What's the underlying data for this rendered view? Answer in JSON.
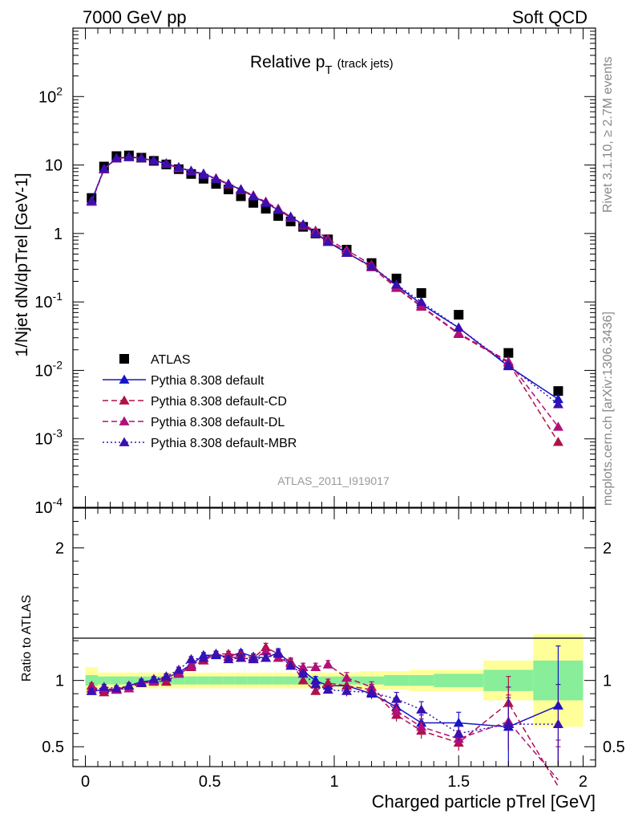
{
  "header": {
    "left": "7000 GeV pp",
    "right": "Soft QCD"
  },
  "side_text": {
    "rivet": "Rivet 3.1.10, ≥ 2.7M events",
    "mcplots": "mcplots.cern.ch [arXiv:1306.3436]"
  },
  "chart_data": {
    "type": "line",
    "title": "Relative pT (track jets)",
    "title_main": "Relative p",
    "title_sub": "T",
    "title_tail": "(track jets)",
    "watermark": "ATLAS_2011_I919017",
    "xlabel": "Charged particle pTrel [GeV]",
    "ylabel": "1/Njet dN/dpTrel [GeV-1]",
    "ratio_ylabel": "Ratio to ATLAS",
    "xlim": [
      -0.05,
      2.05
    ],
    "ylim": [
      0.0001,
      1000
    ],
    "yscale": "log",
    "ratio_ylim": [
      0.35,
      2.3
    ],
    "xticks": [
      "0",
      "0.5",
      "1",
      "1.5",
      "2"
    ],
    "yticks": [
      "10^-4",
      "10^-3",
      "10^-2",
      "10^-1",
      "1",
      "10",
      "10^2"
    ],
    "ratio_yticks": [
      "0.5",
      "1",
      "2"
    ],
    "legend_position": "bottom-left",
    "x": [
      0.025,
      0.075,
      0.125,
      0.175,
      0.225,
      0.275,
      0.325,
      0.375,
      0.425,
      0.475,
      0.525,
      0.575,
      0.625,
      0.675,
      0.725,
      0.775,
      0.825,
      0.875,
      0.925,
      0.975,
      1.05,
      1.15,
      1.25,
      1.35,
      1.5,
      1.7,
      1.9
    ],
    "ratio_band_edges": [
      0.0,
      0.05,
      0.1,
      0.15,
      0.2,
      0.25,
      0.3,
      0.35,
      0.4,
      0.45,
      0.5,
      0.55,
      0.6,
      0.65,
      0.7,
      0.75,
      0.8,
      0.85,
      0.9,
      0.95,
      1.0,
      1.1,
      1.2,
      1.3,
      1.4,
      1.6,
      1.8,
      2.0
    ],
    "ratio_band_inner": [
      0.04,
      0.03,
      0.03,
      0.03,
      0.03,
      0.03,
      0.03,
      0.03,
      0.03,
      0.03,
      0.03,
      0.03,
      0.03,
      0.03,
      0.03,
      0.03,
      0.03,
      0.03,
      0.03,
      0.03,
      0.03,
      0.03,
      0.04,
      0.04,
      0.05,
      0.08,
      0.15,
      0.35
    ],
    "ratio_band_outer": [
      0.1,
      0.06,
      0.06,
      0.06,
      0.06,
      0.06,
      0.06,
      0.06,
      0.06,
      0.06,
      0.06,
      0.06,
      0.06,
      0.06,
      0.06,
      0.06,
      0.06,
      0.06,
      0.06,
      0.06,
      0.06,
      0.07,
      0.07,
      0.08,
      0.08,
      0.15,
      0.35,
      0.58
    ],
    "series": [
      {
        "name": "ATLAS",
        "style": "data",
        "color": "#000000",
        "values": [
          3.3,
          9.5,
          13.5,
          13.8,
          12.8,
          11.5,
          10.2,
          8.7,
          7.4,
          6.3,
          5.3,
          4.4,
          3.5,
          2.8,
          2.3,
          1.8,
          1.5,
          1.25,
          1.0,
          0.82,
          0.58,
          0.37,
          0.22,
          0.135,
          0.065,
          0.018,
          0.005
        ]
      },
      {
        "name": "Pythia 8.308 default",
        "style": "solid",
        "color": "#1515c8",
        "values": [
          3.0,
          8.8,
          12.5,
          13.2,
          12.6,
          11.6,
          10.5,
          9.2,
          8.1,
          7.5,
          6.3,
          5.2,
          4.4,
          3.5,
          2.8,
          2.2,
          1.75,
          1.35,
          1.0,
          0.75,
          0.52,
          0.33,
          0.175,
          0.093,
          0.042,
          0.0115,
          0.0038
        ],
        "ratio": [
          0.92,
          0.93,
          0.93,
          0.96,
          0.99,
          1.0,
          1.02,
          1.06,
          1.12,
          1.19,
          1.19,
          1.18,
          1.21,
          1.18,
          1.17,
          1.21,
          1.13,
          1.07,
          1.0,
          0.96,
          0.96,
          0.9,
          0.8,
          0.68,
          0.68,
          0.65,
          0.81
        ],
        "ratio_err": [
          0.02,
          0.02,
          0.02,
          0.02,
          0.02,
          0.02,
          0.02,
          0.02,
          0.02,
          0.02,
          0.02,
          0.02,
          0.02,
          0.02,
          0.02,
          0.03,
          0.03,
          0.03,
          0.03,
          0.03,
          0.04,
          0.04,
          0.05,
          0.06,
          0.08,
          0.3,
          0.45
        ]
      },
      {
        "name": "Pythia 8.308 default-CD",
        "style": "dashed",
        "color": "#b0104a",
        "values": [
          2.9,
          8.6,
          12.5,
          13.1,
          12.6,
          11.5,
          10.4,
          9.0,
          8.2,
          7.2,
          6.4,
          5.3,
          4.4,
          3.6,
          2.9,
          2.3,
          1.75,
          1.3,
          1.0,
          0.78,
          0.53,
          0.32,
          0.16,
          0.085,
          0.034,
          0.013,
          0.0009
        ],
        "ratio": [
          0.96,
          0.91,
          0.93,
          0.96,
          0.98,
          1.0,
          0.99,
          1.05,
          1.1,
          1.15,
          1.2,
          1.2,
          1.19,
          1.17,
          1.25,
          1.2,
          1.14,
          1.0,
          0.92,
          0.98,
          0.96,
          0.93,
          0.74,
          0.62,
          0.53,
          0.83,
          0.2
        ],
        "ratio_err": [
          0.02,
          0.02,
          0.02,
          0.02,
          0.02,
          0.02,
          0.02,
          0.02,
          0.02,
          0.02,
          0.02,
          0.02,
          0.02,
          0.02,
          0.03,
          0.03,
          0.03,
          0.03,
          0.03,
          0.03,
          0.04,
          0.04,
          0.05,
          0.06,
          0.06,
          0.2,
          0.3
        ]
      },
      {
        "name": "Pythia 8.308 default-DL",
        "style": "dashed",
        "color": "#b0107a",
        "values": [
          2.9,
          8.7,
          12.4,
          13.0,
          12.5,
          11.6,
          10.6,
          9.1,
          8.1,
          7.3,
          6.3,
          5.2,
          4.3,
          3.5,
          2.9,
          2.2,
          1.7,
          1.35,
          1.1,
          0.83,
          0.57,
          0.35,
          0.165,
          0.087,
          0.035,
          0.0135,
          0.0015
        ],
        "ratio": [
          0.94,
          0.94,
          0.93,
          0.94,
          0.98,
          0.99,
          1.03,
          1.05,
          1.11,
          1.17,
          1.2,
          1.18,
          1.17,
          1.16,
          1.22,
          1.17,
          1.13,
          1.1,
          1.1,
          1.12,
          1.02,
          0.95,
          0.77,
          0.65,
          0.56,
          0.69,
          0.25
        ],
        "ratio_err": [
          0.02,
          0.02,
          0.02,
          0.02,
          0.02,
          0.02,
          0.02,
          0.02,
          0.02,
          0.02,
          0.02,
          0.02,
          0.02,
          0.02,
          0.03,
          0.03,
          0.03,
          0.03,
          0.03,
          0.03,
          0.04,
          0.04,
          0.05,
          0.06,
          0.06,
          0.2,
          0.3
        ]
      },
      {
        "name": "Pythia 8.308 default-MBR",
        "style": "dotted",
        "color": "#3a10b0",
        "values": [
          3.0,
          8.8,
          12.6,
          13.0,
          12.6,
          11.6,
          10.5,
          9.3,
          8.2,
          7.2,
          6.2,
          5.3,
          4.4,
          3.5,
          2.8,
          2.2,
          1.75,
          1.35,
          1.0,
          0.76,
          0.52,
          0.33,
          0.18,
          0.1,
          0.042,
          0.012,
          0.0032
        ],
        "ratio": [
          0.92,
          0.95,
          0.94,
          0.96,
          0.98,
          1.01,
          1.03,
          1.08,
          1.16,
          1.17,
          1.2,
          1.16,
          1.17,
          1.16,
          1.17,
          1.2,
          1.11,
          1.05,
          0.97,
          0.93,
          0.92,
          0.91,
          0.86,
          0.78,
          0.6,
          0.67,
          0.67
        ],
        "ratio_err": [
          0.02,
          0.02,
          0.02,
          0.02,
          0.02,
          0.02,
          0.02,
          0.02,
          0.02,
          0.02,
          0.02,
          0.02,
          0.02,
          0.02,
          0.03,
          0.03,
          0.03,
          0.03,
          0.03,
          0.03,
          0.04,
          0.04,
          0.05,
          0.06,
          0.06,
          0.2,
          0.3
        ]
      }
    ]
  }
}
